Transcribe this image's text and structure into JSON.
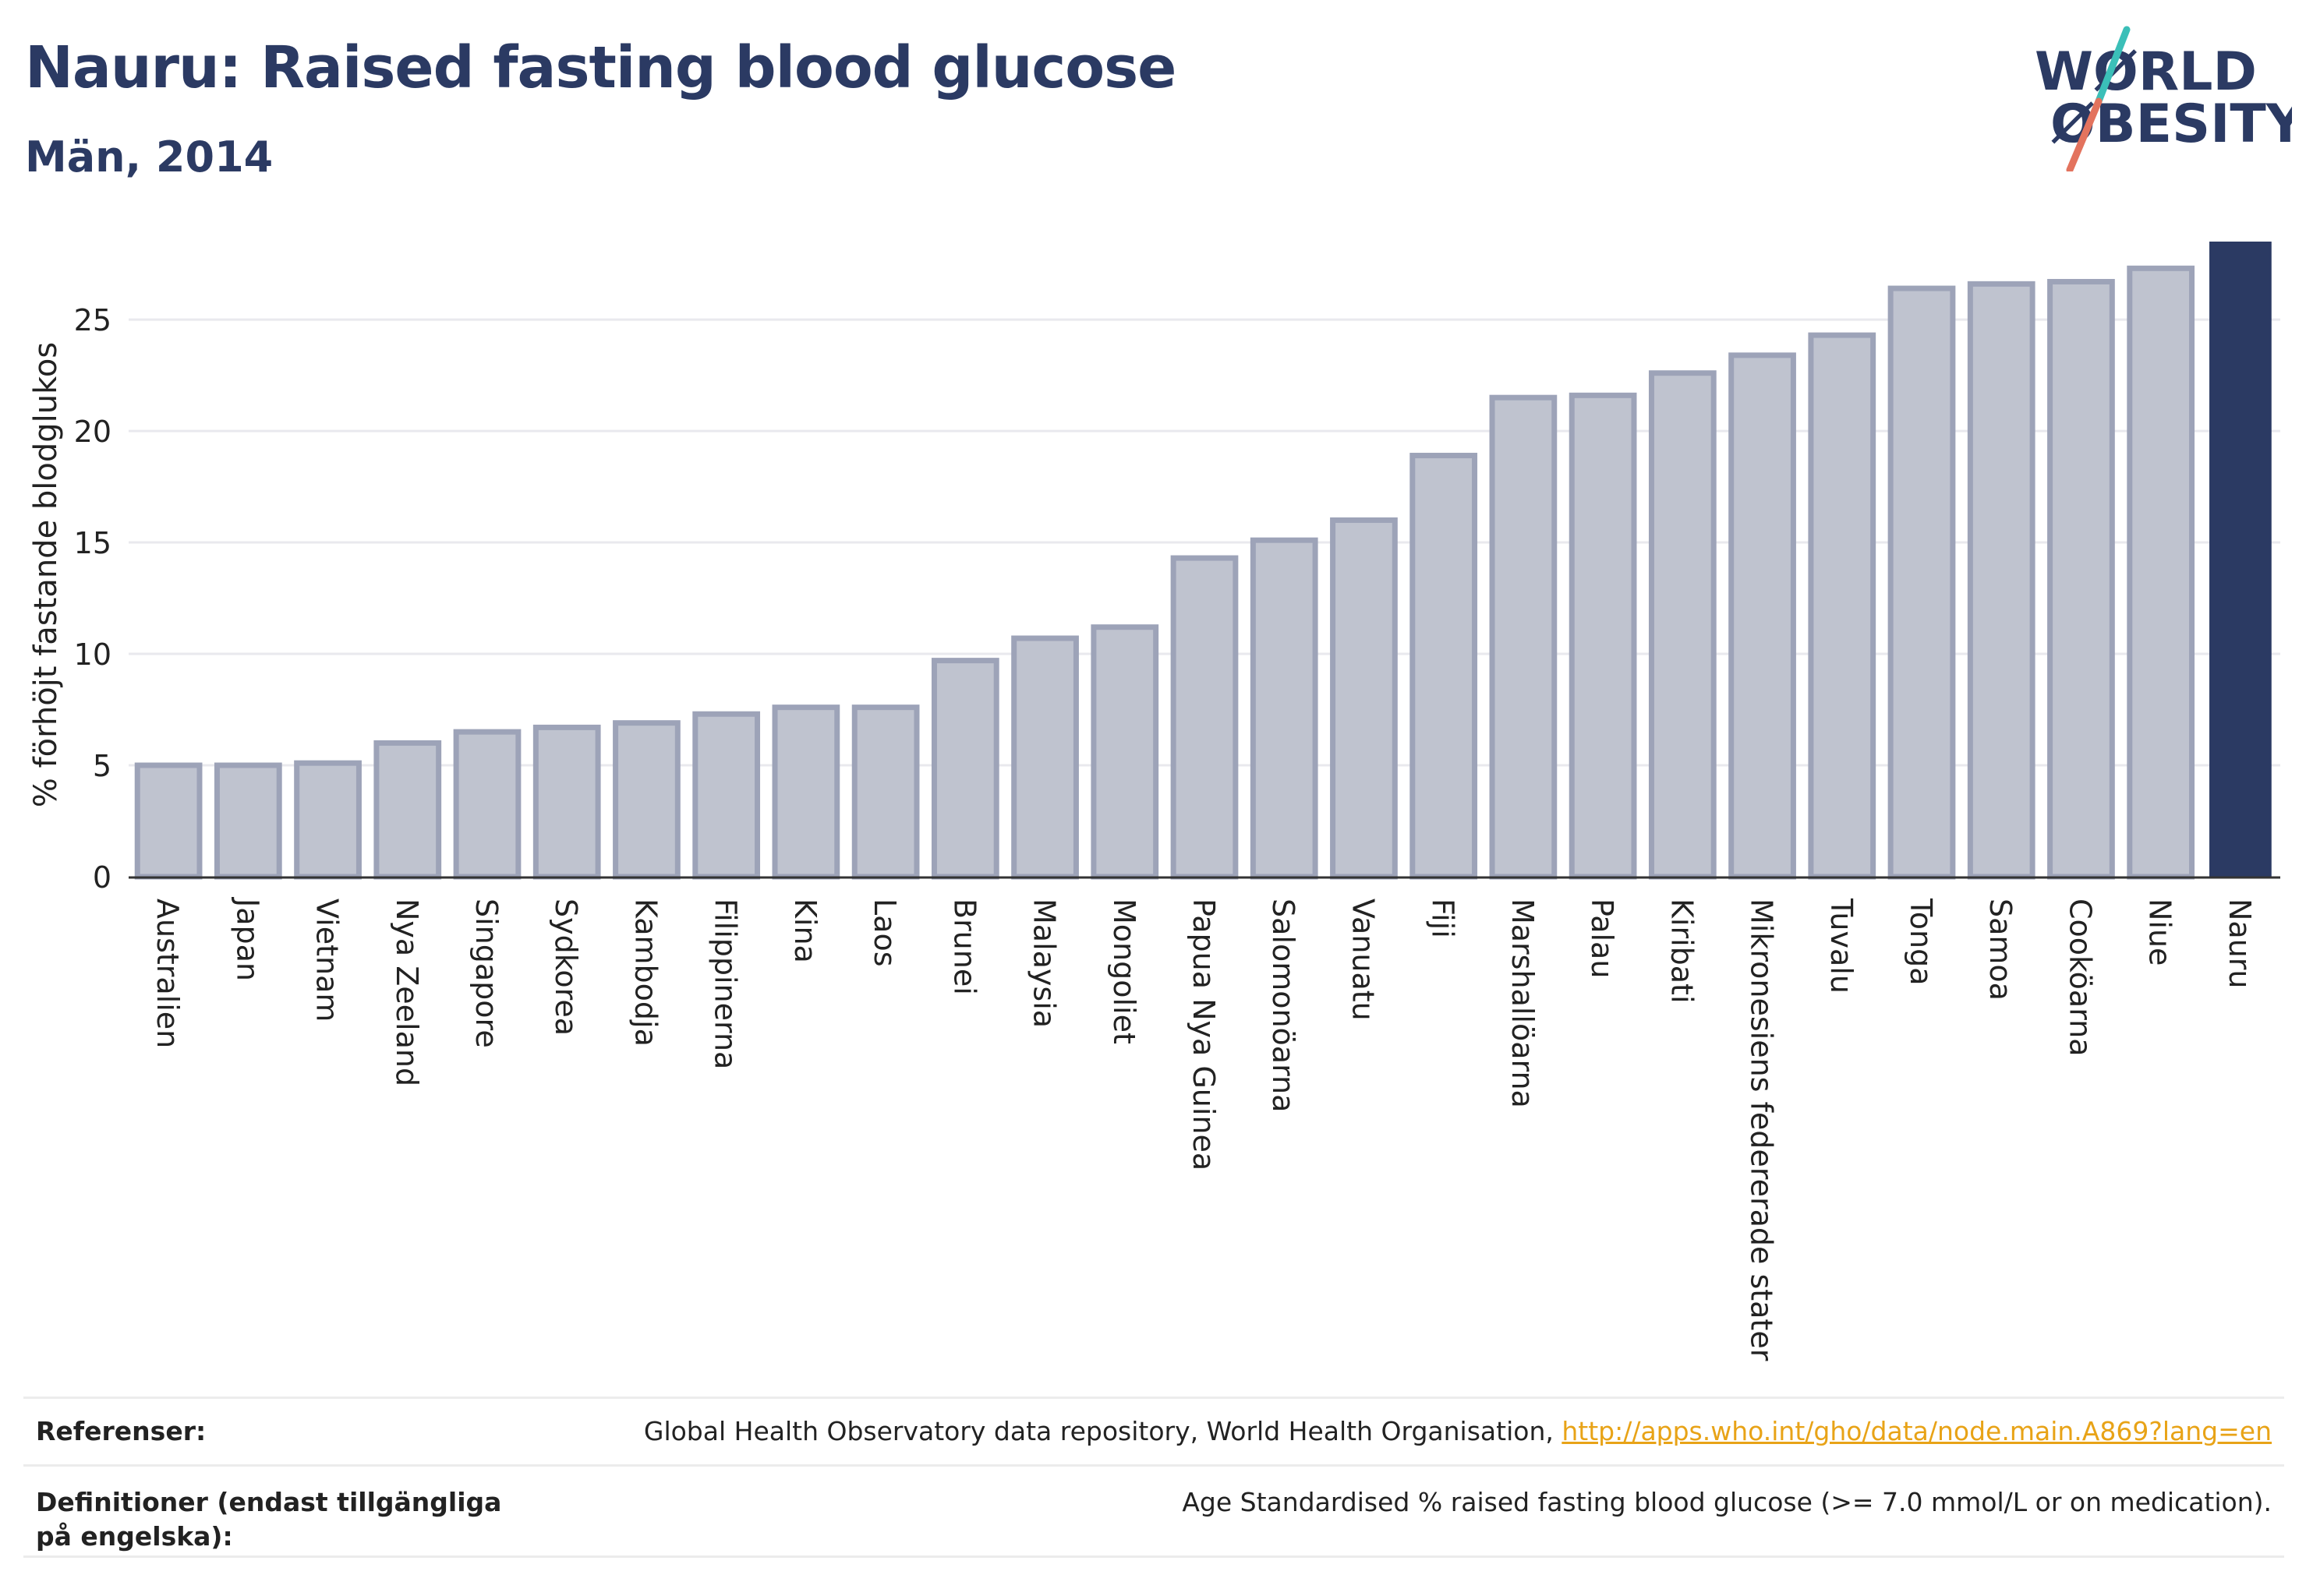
{
  "header": {
    "title": "Nauru: Raised fasting blood glucose",
    "subtitle": "Män, 2014"
  },
  "logo": {
    "line1": "WØRLD",
    "line2": "ØBESITY",
    "text_color": "#2b3a63",
    "slash_top_color": "#3bbfb8",
    "slash_bottom_color": "#e3735e"
  },
  "chart_data": {
    "type": "bar",
    "title": "Nauru: Raised fasting blood glucose",
    "subtitle": "Män, 2014",
    "xlabel": "",
    "ylabel": "% förhöjt fastande blodglukos",
    "ylim": [
      0,
      28.5
    ],
    "yticks": [
      0,
      5,
      10,
      15,
      20,
      25
    ],
    "grid": true,
    "highlight": "Nauru",
    "colors": {
      "bar": "#bfc3cf",
      "bar_border": "#9da3b8",
      "highlight": "#2b3a63"
    },
    "categories": [
      "Australien",
      "Japan",
      "Vietnam",
      "Nya Zeeland",
      "Singapore",
      "Sydkorea",
      "Kambodja",
      "Filippinerna",
      "Kina",
      "Laos",
      "Brunei",
      "Malaysia",
      "Mongoliet",
      "Papua Nya Guinea",
      "Salomonöarna",
      "Vanuatu",
      "Fiji",
      "Marshallöarna",
      "Palau",
      "Kiribati",
      "Mikronesiens federerade stater",
      "Tuvalu",
      "Tonga",
      "Samoa",
      "Cooköarna",
      "Niue",
      "Nauru"
    ],
    "values": [
      5.0,
      5.0,
      5.1,
      6.0,
      6.5,
      6.7,
      6.9,
      7.3,
      7.6,
      7.6,
      9.7,
      10.7,
      11.2,
      14.3,
      15.1,
      16.0,
      18.9,
      21.5,
      21.6,
      22.6,
      23.4,
      24.3,
      26.4,
      26.6,
      26.7,
      27.3,
      28.5
    ]
  },
  "footer": {
    "references_label": "Referenser:",
    "references_text": "Global Health Observatory data repository, World Health Organisation, ",
    "references_link": "http://apps.who.int/gho/data/node.main.A869?lang=en",
    "definitions_label": "Definitioner (endast tillgängliga på engelska):",
    "definitions_text": "Age Standardised % raised fasting blood glucose (>= 7.0 mmol/L or on medication)."
  }
}
